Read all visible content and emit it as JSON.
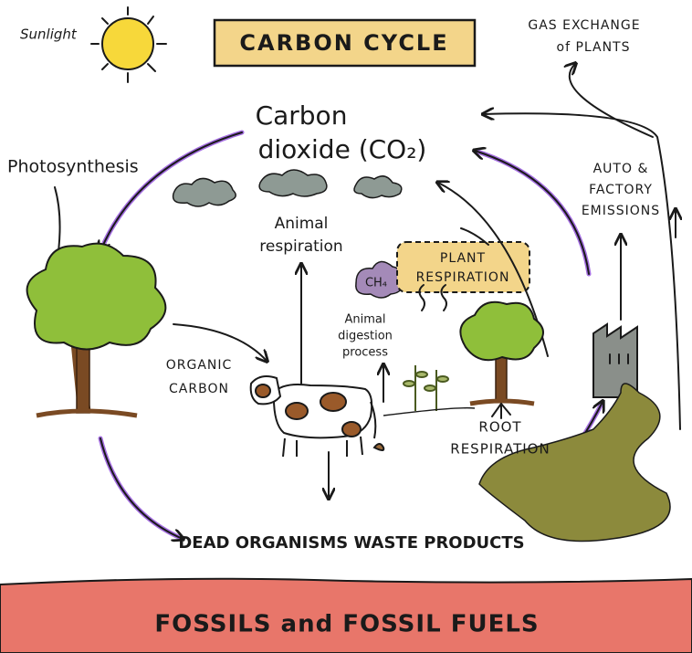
{
  "sunlight": "Sunlight",
  "title": "CARBON CYCLE",
  "gas_exchange": [
    "GAS EXCHANGE",
    "of PLANTS"
  ],
  "co2": [
    "Carbon",
    "dioxide (CO₂)"
  ],
  "photosynthesis": "Photosynthesis",
  "emissions": [
    "AUTO &",
    "FACTORY",
    "EMISSIONS"
  ],
  "animal_respiration": [
    "Animal",
    "respiration"
  ],
  "methane": "CH₄",
  "plant_respiration": [
    "PLANT",
    "RESPIRATION"
  ],
  "digestion": [
    "Animal",
    "digestion",
    "process"
  ],
  "organic_carbon": [
    "ORGANIC",
    "CARBON"
  ],
  "root_respiration": [
    "ROOT",
    "RESPIRATION"
  ],
  "dead_organisms": "DEAD ORGANISMS WASTE PRODUCTS",
  "fossils": "FOSSILS and FOSSIL FUELS"
}
